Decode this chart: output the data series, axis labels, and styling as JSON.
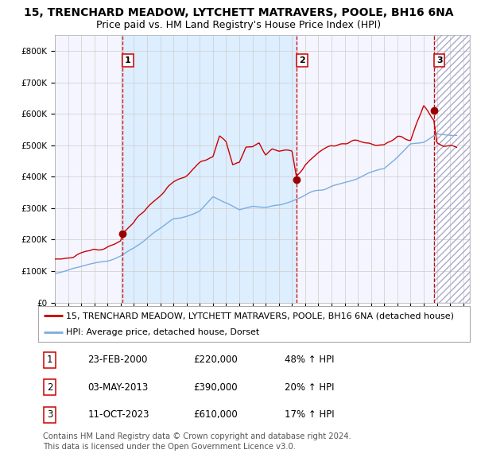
{
  "title": "15, TRENCHARD MEADOW, LYTCHETT MATRAVERS, POOLE, BH16 6NA",
  "subtitle": "Price paid vs. HM Land Registry's House Price Index (HPI)",
  "ylim": [
    0,
    850000
  ],
  "yticks": [
    0,
    100000,
    200000,
    300000,
    400000,
    500000,
    600000,
    700000,
    800000
  ],
  "ytick_labels": [
    "£0",
    "£100K",
    "£200K",
    "£300K",
    "£400K",
    "£500K",
    "£600K",
    "£700K",
    "£800K"
  ],
  "xmin": 1995.0,
  "xmax": 2026.5,
  "sale1_date": 2000.12,
  "sale1_price": 220000,
  "sale2_date": 2013.33,
  "sale2_price": 390000,
  "sale3_date": 2023.77,
  "sale3_price": 610000,
  "red_line_color": "#cc0000",
  "blue_line_color": "#7aade0",
  "shade_color": "#ddeeff",
  "grid_color": "#cccccc",
  "bg_color": "#f5f5ff",
  "legend_label_red": "15, TRENCHARD MEADOW, LYTCHETT MATRAVERS, POOLE, BH16 6NA (detached house)",
  "legend_label_blue": "HPI: Average price, detached house, Dorset",
  "table_rows": [
    [
      "1",
      "23-FEB-2000",
      "£220,000",
      "48% ↑ HPI"
    ],
    [
      "2",
      "03-MAY-2013",
      "£390,000",
      "20% ↑ HPI"
    ],
    [
      "3",
      "11-OCT-2023",
      "£610,000",
      "17% ↑ HPI"
    ]
  ],
  "footer": "Contains HM Land Registry data © Crown copyright and database right 2024.\nThis data is licensed under the Open Government Licence v3.0.",
  "title_fontsize": 10,
  "subtitle_fontsize": 9,
  "tick_fontsize": 7.5,
  "legend_fontsize": 8,
  "table_fontsize": 8.5
}
